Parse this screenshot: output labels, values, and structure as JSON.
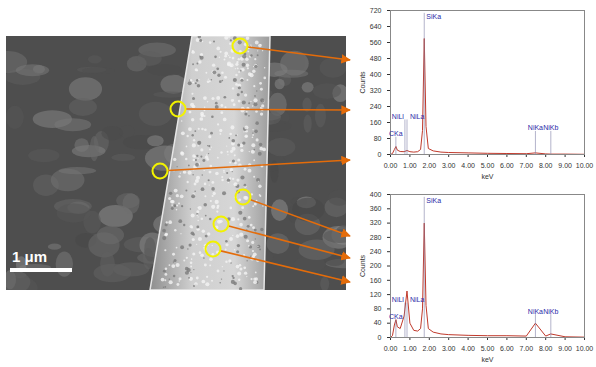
{
  "sem_image": {
    "scale_bar": "1 μm"
  },
  "chart_data": [
    {
      "type": "line",
      "x_label": "keV",
      "y_label": "Counts",
      "x": [
        0.0,
        0.1,
        0.2,
        0.28,
        0.35,
        0.5,
        0.7,
        0.85,
        1.0,
        1.2,
        1.4,
        1.55,
        1.65,
        1.74,
        1.83,
        1.95,
        2.2,
        2.6,
        3.0,
        4.0,
        5.0,
        6.0,
        7.0,
        7.47,
        8.0,
        8.26,
        9.0,
        10.0
      ],
      "values": [
        0,
        5,
        25,
        40,
        22,
        15,
        14,
        20,
        14,
        12,
        14,
        25,
        120,
        580,
        140,
        30,
        18,
        12,
        10,
        8,
        6,
        5,
        4,
        8,
        3,
        2,
        2,
        1
      ],
      "color": "#c0392b",
      "xlim": [
        0,
        10
      ],
      "ylim": [
        0,
        720
      ],
      "xticks": [
        {
          "value": 0,
          "label": "0.00"
        },
        {
          "value": 1,
          "label": "1.00"
        },
        {
          "value": 2,
          "label": "2.00"
        },
        {
          "value": 3,
          "label": "3.00"
        },
        {
          "value": 4,
          "label": "4.00"
        },
        {
          "value": 5,
          "label": "5.00"
        },
        {
          "value": 6,
          "label": "6.00"
        },
        {
          "value": 7,
          "label": "7.00"
        },
        {
          "value": 8,
          "label": "8.00"
        },
        {
          "value": 9,
          "label": "9.00"
        },
        {
          "value": 10,
          "label": "10.00"
        }
      ],
      "yticks": [
        0,
        80,
        160,
        240,
        320,
        400,
        480,
        560,
        640,
        720
      ],
      "peaks": [
        {
          "label": "CKa",
          "x": 0.277
        },
        {
          "label": "NiLl",
          "x": 0.743
        },
        {
          "label": "NiLa",
          "x": 0.851
        },
        {
          "label": "SiKa",
          "x": 1.739
        },
        {
          "label": "NiKa",
          "x": 7.471
        },
        {
          "label": "NiKb",
          "x": 8.264
        }
      ]
    },
    {
      "type": "line",
      "x_label": "keV",
      "y_label": "Counts",
      "x": [
        0.0,
        0.1,
        0.2,
        0.28,
        0.35,
        0.5,
        0.7,
        0.85,
        1.0,
        1.2,
        1.4,
        1.55,
        1.65,
        1.74,
        1.83,
        1.95,
        2.2,
        2.6,
        3.0,
        4.0,
        5.0,
        6.0,
        7.0,
        7.47,
        8.0,
        8.26,
        9.0,
        10.0
      ],
      "values": [
        0,
        5,
        35,
        50,
        30,
        25,
        60,
        130,
        40,
        20,
        18,
        25,
        80,
        320,
        90,
        25,
        15,
        10,
        8,
        6,
        5,
        5,
        4,
        40,
        4,
        10,
        2,
        1
      ],
      "color": "#c0392b",
      "xlim": [
        0,
        10
      ],
      "ylim": [
        0,
        400
      ],
      "xticks": [
        {
          "value": 0,
          "label": "0.00"
        },
        {
          "value": 1,
          "label": "1.00"
        },
        {
          "value": 2,
          "label": "2.00"
        },
        {
          "value": 3,
          "label": "3.00"
        },
        {
          "value": 4,
          "label": "4.00"
        },
        {
          "value": 5,
          "label": "5.00"
        },
        {
          "value": 6,
          "label": "6.00"
        },
        {
          "value": 7,
          "label": "7.00"
        },
        {
          "value": 8,
          "label": "8.00"
        },
        {
          "value": 9,
          "label": "9.00"
        },
        {
          "value": 10,
          "label": "10.00"
        }
      ],
      "yticks": [
        0,
        40,
        80,
        120,
        160,
        200,
        240,
        280,
        320,
        360,
        400
      ],
      "peaks": [
        {
          "label": "CKa",
          "x": 0.277
        },
        {
          "label": "NiLl",
          "x": 0.743
        },
        {
          "label": "NiLa",
          "x": 0.851
        },
        {
          "label": "SiKa",
          "x": 1.739
        },
        {
          "label": "NiKa",
          "x": 7.471
        },
        {
          "label": "NiKb",
          "x": 8.264
        }
      ]
    }
  ]
}
